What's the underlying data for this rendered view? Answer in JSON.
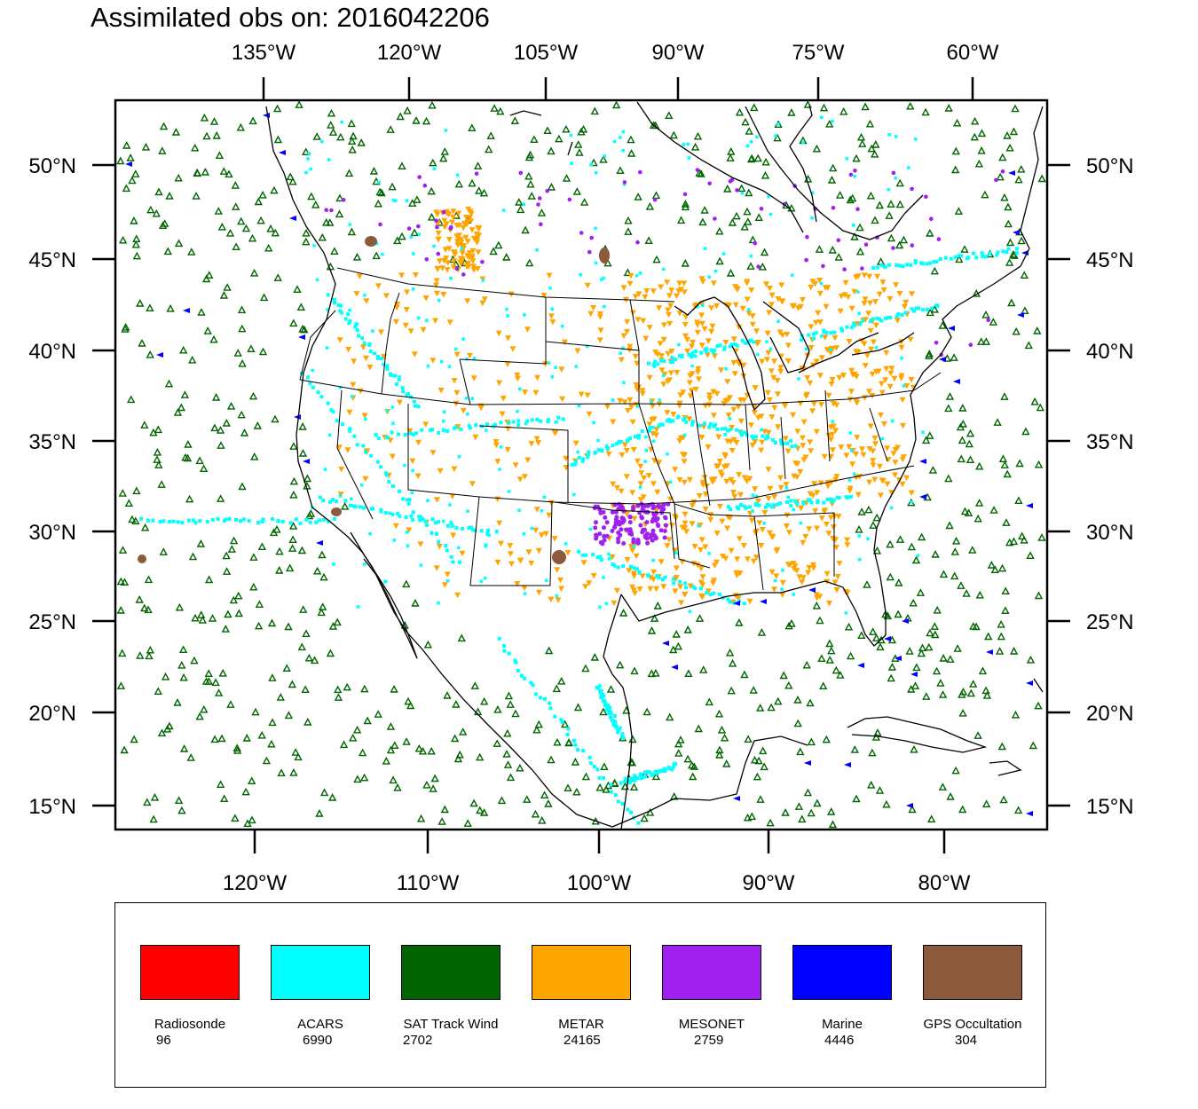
{
  "title": "Assimilated obs on: 2016042206",
  "top_lon_labels": [
    "135°W",
    "120°W",
    "105°W",
    "90°W",
    "75°W",
    "60°W"
  ],
  "bottom_lon_labels": [
    "120°W",
    "110°W",
    "100°W",
    "90°W",
    "80°W"
  ],
  "lat_labels": [
    "50°N",
    "45°N",
    "40°N",
    "35°N",
    "30°N",
    "25°N",
    "20°N",
    "15°N"
  ],
  "legend": [
    {
      "name": "Radiosonde",
      "count": "96",
      "color": "#ff0000"
    },
    {
      "name": "ACARS",
      "count": "6990",
      "color": "#00ffff"
    },
    {
      "name": "SAT Track Wind",
      "count": "2702",
      "color": "#006400"
    },
    {
      "name": "METAR",
      "count": "24165",
      "color": "#ffa500"
    },
    {
      "name": "MESONET",
      "count": "2759",
      "color": "#a020f0"
    },
    {
      "name": "Marine",
      "count": "4446",
      "color": "#0000ff"
    },
    {
      "name": "GPS Occultation",
      "count": "304",
      "color": "#8b5a3c"
    }
  ],
  "chart_data": {
    "type": "scatter",
    "title": "Assimilated obs on: 2016042206",
    "lon_range": [
      -128,
      -74
    ],
    "lat_range": [
      14,
      53
    ],
    "series": [
      {
        "name": "Radiosonde",
        "count": 96,
        "color": "#ff0000"
      },
      {
        "name": "ACARS",
        "count": 6990,
        "color": "#00ffff"
      },
      {
        "name": "SAT Track Wind",
        "count": 2702,
        "color": "#006400"
      },
      {
        "name": "METAR",
        "count": 24165,
        "color": "#ffa500"
      },
      {
        "name": "MESONET",
        "count": 2759,
        "color": "#a020f0"
      },
      {
        "name": "Marine",
        "count": 4446,
        "color": "#0000ff"
      },
      {
        "name": "GPS Occultation",
        "count": 304,
        "color": "#8b5a3c"
      }
    ]
  }
}
